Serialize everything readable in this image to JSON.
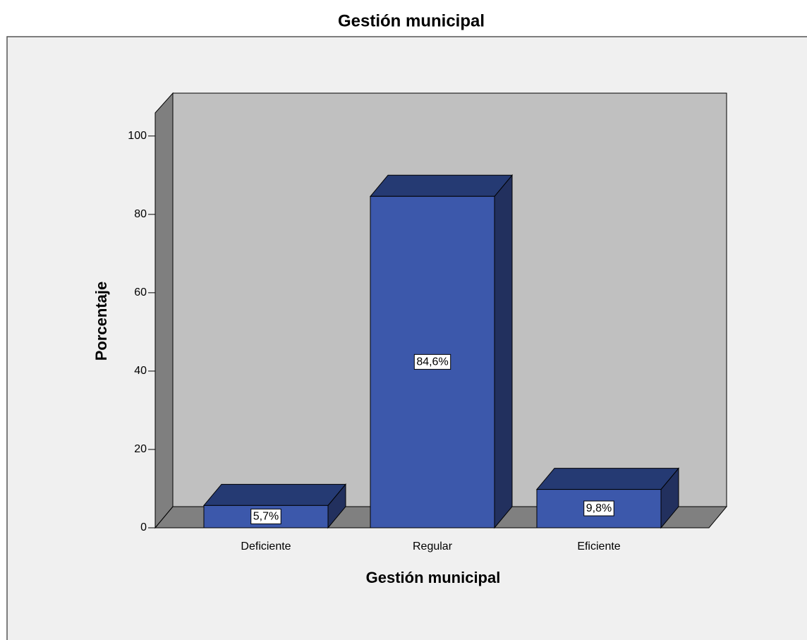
{
  "chart_data": {
    "type": "bar3d",
    "title": "Gestión municipal",
    "categories": [
      "Deficiente",
      "Regular",
      "Eficiente"
    ],
    "values": [
      5.7,
      84.6,
      9.8
    ],
    "value_labels": [
      "5,7%",
      "84,6%",
      "9,8%"
    ],
    "color": "#3c58ab",
    "x_label": "Gestión municipal",
    "y_label": "Porcentaje",
    "ylim": [
      0,
      105
    ],
    "yticks": [
      0,
      20,
      40,
      60,
      80,
      100
    ]
  }
}
